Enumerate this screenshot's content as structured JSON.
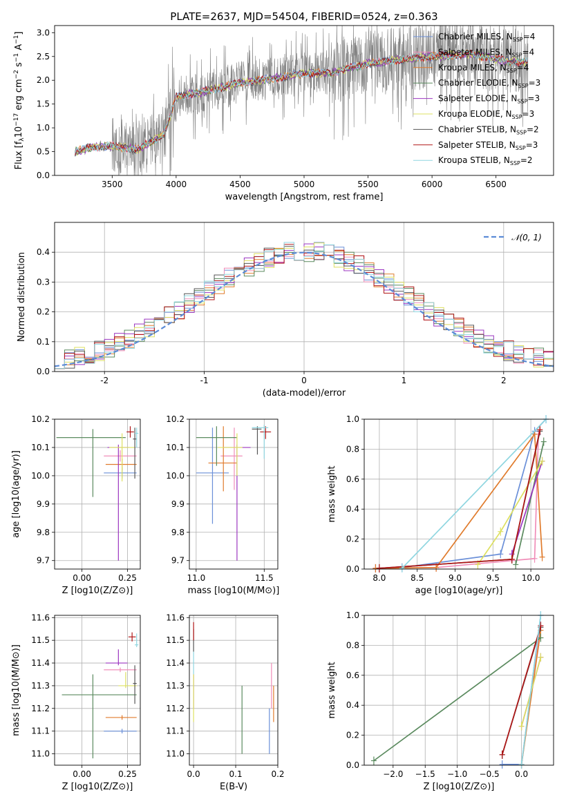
{
  "figure": {
    "title": "PLATE=2637, MJD=54504, FIBERID=0524, z=0.363"
  },
  "series_styles": [
    {
      "name": "Chabrier MILES",
      "nssp": "4",
      "color": "#6a8fd8"
    },
    {
      "name": "Salpeter MILES",
      "nssp": "4",
      "color": "#f08db8"
    },
    {
      "name": "Kroupa MILES",
      "nssp": "4",
      "color": "#e07b2c"
    },
    {
      "name": "Chabrier ELODIE",
      "nssp": "3",
      "color": "#5a8a5e"
    },
    {
      "name": "Salpeter ELODIE",
      "nssp": "3",
      "color": "#9b35c0"
    },
    {
      "name": "Kroupa ELODIE",
      "nssp": "3",
      "color": "#dde060"
    },
    {
      "name": "Chabrier STELIB",
      "nssp": "2",
      "color": "#555555"
    },
    {
      "name": "Salpeter STELIB",
      "nssp": "3",
      "color": "#b01616"
    },
    {
      "name": "Kroupa STELIB",
      "nssp": "2",
      "color": "#8fd6e0"
    }
  ],
  "chart_data": [
    {
      "id": "spectrum",
      "type": "line",
      "title": "PLATE=2637, MJD=54504, FIBERID=0524, z=0.363",
      "xlabel": "wavelength [Angstrom, rest frame]",
      "ylabel": "Flux [f_λ 10^-17 erg cm^-2 s^-1 A^-1]",
      "xlim": [
        3050,
        6950
      ],
      "ylim": [
        0,
        3.15
      ],
      "xticks": [
        3500,
        4000,
        4500,
        5000,
        5500,
        6000,
        6500
      ],
      "yticks": [
        0.0,
        0.5,
        1.0,
        1.5,
        2.0,
        2.5,
        3.0
      ],
      "legend_position": "top-right",
      "data_color": "#808080",
      "model_continuum": {
        "x": [
          3210,
          3350,
          3500,
          3700,
          3900,
          3950,
          4000,
          4200,
          4500,
          4800,
          5000,
          5200,
          5500,
          5800,
          6000,
          6300,
          6600,
          6750
        ],
        "y": [
          0.5,
          0.6,
          0.62,
          0.55,
          0.85,
          1.2,
          1.65,
          1.75,
          1.95,
          2.05,
          2.15,
          2.15,
          2.35,
          2.45,
          2.5,
          2.55,
          2.4,
          2.38
        ]
      },
      "grid": false
    },
    {
      "id": "residuals",
      "type": "histogram",
      "xlabel": "(data-model)/error",
      "ylabel": "Normed distribution",
      "xlim": [
        -2.5,
        2.5
      ],
      "ylim": [
        0,
        0.5
      ],
      "xticks": [
        -2,
        -1,
        0,
        1,
        2
      ],
      "yticks": [
        0.0,
        0.1,
        0.2,
        0.3,
        0.4
      ],
      "legend": "𝒩(0, 1)",
      "legend_position": "top-right",
      "bin_width": 0.1,
      "bin_start": -2.5,
      "grid": true
    },
    {
      "id": "age-vs-z",
      "type": "errorbar",
      "xlabel": "Z [log10(Z/Z⊙)]",
      "ylabel": "age [log10(age/yr)]",
      "xlim": [
        -0.15,
        0.32
      ],
      "ylim": [
        9.67,
        10.2
      ],
      "xticks": [
        "0.00",
        "0.25"
      ],
      "yticks": [
        "9.7",
        "9.8",
        "9.9",
        "10.0",
        "10.1",
        "10.2"
      ],
      "points": [
        {
          "series": 0,
          "x": 0.22,
          "y": 10.01,
          "xerr": [
            0.1,
            0.08
          ],
          "yerr": [
            0.02,
            0.02
          ]
        },
        {
          "series": 1,
          "x": 0.21,
          "y": 10.07,
          "xerr": [
            0.09,
            0.09
          ],
          "yerr": [
            0.02,
            0.02
          ]
        },
        {
          "series": 2,
          "x": 0.22,
          "y": 10.04,
          "xerr": [
            0.09,
            0.08
          ],
          "yerr": [
            0.02,
            0.02
          ]
        },
        {
          "series": 3,
          "x": 0.06,
          "y": 10.135,
          "xerr": [
            0.2,
            0.18
          ],
          "yerr": [
            0.21,
            0.03
          ]
        },
        {
          "series": 4,
          "x": 0.2,
          "y": 10.1,
          "xerr": [
            0.06,
            0.06
          ],
          "yerr": [
            0.4,
            0.01
          ]
        },
        {
          "series": 5,
          "x": 0.22,
          "y": 10.1,
          "xerr": [
            0.07,
            0.07
          ],
          "yerr": [
            0.12,
            0.05
          ]
        },
        {
          "series": 6,
          "x": 0.29,
          "y": 10.13,
          "xerr": [
            0.01,
            0.01
          ],
          "yerr": [
            0.14,
            0.04
          ]
        },
        {
          "series": 7,
          "x": 0.265,
          "y": 10.155,
          "xerr": [
            0.02,
            0.02
          ],
          "yerr": [
            0.02,
            0.02
          ]
        },
        {
          "series": 8,
          "x": 0.3,
          "y": 10.15,
          "xerr": [
            0.01,
            0.01
          ],
          "yerr": [
            0.05,
            0.02
          ]
        }
      ],
      "grid": true
    },
    {
      "id": "age-vs-mass",
      "type": "errorbar",
      "xlabel": "mass [log10(M/M⊙)]",
      "ylabel": "",
      "xlim": [
        10.95,
        11.6
      ],
      "ylim": [
        9.67,
        10.2
      ],
      "xticks": [
        "11.0",
        "11.5"
      ],
      "yticks": [
        "9.7",
        "9.8",
        "9.9",
        "10.0",
        "10.1",
        "10.2"
      ],
      "points": [
        {
          "series": 0,
          "x": 11.12,
          "y": 10.01,
          "xerr": [
            0.12,
            0.12
          ],
          "yerr": [
            0.18,
            0.16
          ]
        },
        {
          "series": 1,
          "x": 11.28,
          "y": 10.07,
          "xerr": [
            0.1,
            0.06
          ],
          "yerr": [
            0.12,
            0.1
          ]
        },
        {
          "series": 2,
          "x": 11.2,
          "y": 10.045,
          "xerr": [
            0.11,
            0.1
          ],
          "yerr": [
            0.1,
            0.13
          ]
        },
        {
          "series": 3,
          "x": 11.15,
          "y": 10.135,
          "xerr": [
            0.15,
            0.15
          ],
          "yerr": [
            0.1,
            0.04
          ]
        },
        {
          "series": 4,
          "x": 11.3,
          "y": 10.1,
          "xerr": [
            0.1,
            0.1
          ],
          "yerr": [
            0.4,
            0.01
          ]
        },
        {
          "series": 5,
          "x": 11.3,
          "y": 10.1,
          "xerr": [
            0.14,
            0.04
          ],
          "yerr": [
            0.1,
            0.05
          ]
        },
        {
          "series": 6,
          "x": 11.45,
          "y": 10.165,
          "xerr": [
            0.04,
            0.03
          ],
          "yerr": [
            0.09,
            0.01
          ]
        },
        {
          "series": 7,
          "x": 11.51,
          "y": 10.155,
          "xerr": [
            0.04,
            0.04
          ],
          "yerr": [
            0.025,
            0.02
          ]
        },
        {
          "series": 8,
          "x": 11.5,
          "y": 10.17,
          "xerr": [
            0.09,
            0.03
          ],
          "yerr": [
            0.11,
            0.01
          ]
        }
      ],
      "grid": true
    },
    {
      "id": "mass-weight-vs-age",
      "type": "line",
      "xlabel": "age [log10(age/yr)]",
      "ylabel": "mass weight",
      "xlim": [
        7.8,
        10.3
      ],
      "ylim": [
        0,
        1.0
      ],
      "xticks": [
        "8.0",
        "8.5",
        "9.0",
        "9.5",
        "10.0"
      ],
      "yticks": [
        "0.0",
        "0.2",
        "0.4",
        "0.6",
        "0.8",
        "1.0"
      ],
      "series": [
        {
          "series": 0,
          "x": [
            7.95,
            8.3,
            9.6,
            10.05,
            10.2
          ],
          "y": [
            0.005,
            0.01,
            0.1,
            0.92,
            1.0
          ]
        },
        {
          "series": 1,
          "x": [
            7.95,
            8.75,
            10.05,
            10.1
          ],
          "y": [
            0.005,
            0.01,
            0.07,
            0.9
          ]
        },
        {
          "series": 2,
          "x": [
            7.95,
            8.75,
            10.05,
            10.15
          ],
          "y": [
            0.005,
            0.01,
            0.9,
            0.08
          ]
        },
        {
          "series": 3,
          "x": [
            9.8,
            10.17
          ],
          "y": [
            0.03,
            0.85
          ]
        },
        {
          "series": 4,
          "x": [
            9.75,
            10.15
          ],
          "y": [
            0.1,
            0.72
          ]
        },
        {
          "series": 5,
          "x": [
            9.3,
            9.6,
            10.15
          ],
          "y": [
            0.03,
            0.25,
            0.72
          ]
        },
        {
          "series": 6,
          "x": [
            8.0,
            9.75,
            10.12
          ],
          "y": [
            0.005,
            0.065,
            0.92
          ]
        },
        {
          "series": 7,
          "x": [
            8.0,
            9.75,
            10.12
          ],
          "y": [
            0.005,
            0.065,
            0.93
          ]
        },
        {
          "series": 8,
          "x": [
            8.3,
            10.2
          ],
          "y": [
            0.005,
            1.0
          ]
        }
      ],
      "grid": true
    },
    {
      "id": "mass-vs-z",
      "type": "errorbar",
      "xlabel": "Z [log10(Z/Z⊙)]",
      "ylabel": "mass [log10(M/M⊙)]",
      "xlim": [
        -0.15,
        0.32
      ],
      "ylim": [
        10.95,
        11.61
      ],
      "xticks": [
        "0.00",
        "0.25"
      ],
      "yticks": [
        "11.0",
        "11.1",
        "11.2",
        "11.3",
        "11.4",
        "11.5",
        "11.6"
      ],
      "points": [
        {
          "series": 0,
          "x": 0.22,
          "y": 11.1,
          "xerr": [
            0.1,
            0.08
          ],
          "yerr": [
            0.01,
            0.01
          ]
        },
        {
          "series": 1,
          "x": 0.21,
          "y": 11.37,
          "xerr": [
            0.09,
            0.09
          ],
          "yerr": [
            0.01,
            0.01
          ]
        },
        {
          "series": 2,
          "x": 0.22,
          "y": 11.16,
          "xerr": [
            0.09,
            0.08
          ],
          "yerr": [
            0.01,
            0.01
          ]
        },
        {
          "series": 3,
          "x": 0.06,
          "y": 11.26,
          "xerr": [
            0.17,
            0.24
          ],
          "yerr": [
            0.28,
            0.09
          ]
        },
        {
          "series": 4,
          "x": 0.2,
          "y": 11.4,
          "xerr": [
            0.07,
            0.05
          ],
          "yerr": [
            0.01,
            0.06
          ]
        },
        {
          "series": 5,
          "x": 0.24,
          "y": 11.3,
          "xerr": [
            0.04,
            0.06
          ],
          "yerr": [
            0.01,
            0.06
          ]
        },
        {
          "series": 6,
          "x": 0.29,
          "y": 11.31,
          "xerr": [
            0.01,
            0.01
          ],
          "yerr": [
            0.09,
            0.08
          ]
        },
        {
          "series": 7,
          "x": 0.275,
          "y": 11.515,
          "xerr": [
            0.02,
            0.02
          ],
          "yerr": [
            0.02,
            0.02
          ]
        },
        {
          "series": 8,
          "x": 0.3,
          "y": 11.48,
          "xerr": [
            0.01,
            0.01
          ],
          "yerr": [
            0.01,
            0.05
          ]
        }
      ],
      "grid": true
    },
    {
      "id": "mass-vs-ebv",
      "type": "errorbar",
      "xlabel": "E(B-V)",
      "ylabel": "",
      "xlim": [
        -0.01,
        0.2
      ],
      "ylim": [
        10.95,
        11.61
      ],
      "xticks": [
        "0.0",
        "0.1",
        "0.2"
      ],
      "yticks": [
        "11.0",
        "11.1",
        "11.2",
        "11.3",
        "11.4",
        "11.5",
        "11.6"
      ],
      "points": [
        {
          "series": 0,
          "x": 0.18,
          "y": 11.2,
          "xerr": [
            0.0,
            0.0
          ],
          "yerr": [
            0.2,
            0.0
          ]
        },
        {
          "series": 1,
          "x": 0.185,
          "y": 11.3,
          "xerr": [
            0.0,
            0.0
          ],
          "yerr": [
            0.1,
            0.1
          ]
        },
        {
          "series": 2,
          "x": 0.19,
          "y": 11.2,
          "xerr": [
            0.0,
            0.0
          ],
          "yerr": [
            0.06,
            0.1
          ]
        },
        {
          "series": 3,
          "x": 0.115,
          "y": 11.1,
          "xerr": [
            0.0,
            0.0
          ],
          "yerr": [
            0.1,
            0.2
          ]
        },
        {
          "series": 4,
          "x": 0.0,
          "y": 11.3,
          "xerr": [
            0.0,
            0.0
          ],
          "yerr": [
            0.1,
            0.05
          ]
        },
        {
          "series": 5,
          "x": 0.0,
          "y": 11.2,
          "xerr": [
            0.0,
            0.0
          ],
          "yerr": [
            0.06,
            0.15
          ]
        },
        {
          "series": 6,
          "x": 0.0,
          "y": 11.5,
          "xerr": [
            0.0,
            0.0
          ],
          "yerr": [
            0.05,
            0.05
          ]
        },
        {
          "series": 7,
          "x": 0.0,
          "y": 11.53,
          "xerr": [
            0.0,
            0.0
          ],
          "yerr": [
            0.03,
            0.05
          ]
        },
        {
          "series": 8,
          "x": 0.0,
          "y": 11.4,
          "xerr": [
            0.0,
            0.0
          ],
          "yerr": [
            0.05,
            0.05
          ]
        }
      ],
      "grid": true
    },
    {
      "id": "mass-weight-vs-z",
      "type": "line",
      "xlabel": "Z [log10(Z/Z⊙)]",
      "ylabel": "mass weight",
      "xlim": [
        -2.45,
        0.5
      ],
      "ylim": [
        0,
        1.0
      ],
      "xticks": [
        "−2.0",
        "−1.5",
        "−1.0",
        "−0.5",
        "0.0"
      ],
      "yticks": [
        "0.0",
        "0.2",
        "0.4",
        "0.6",
        "0.8",
        "1.0"
      ],
      "series": [
        {
          "series": 0,
          "x": [
            -0.3,
            0.0,
            0.3
          ],
          "y": [
            0.005,
            0.005,
            1.0
          ]
        },
        {
          "series": 1,
          "x": [
            0.0,
            0.3
          ],
          "y": [
            0.005,
            0.93
          ]
        },
        {
          "series": 2,
          "x": [
            0.0,
            0.3
          ],
          "y": [
            0.005,
            0.9
          ]
        },
        {
          "series": 3,
          "x": [
            -2.3,
            0.3
          ],
          "y": [
            0.03,
            0.85
          ]
        },
        {
          "series": 4,
          "x": [
            0.0,
            0.3
          ],
          "y": [
            0.26,
            0.72
          ]
        },
        {
          "series": 5,
          "x": [
            0.0,
            0.3
          ],
          "y": [
            0.26,
            0.72
          ]
        },
        {
          "series": 6,
          "x": [
            -0.3,
            0.3
          ],
          "y": [
            0.07,
            0.92
          ]
        },
        {
          "series": 7,
          "x": [
            -0.3,
            0.3
          ],
          "y": [
            0.07,
            0.93
          ]
        },
        {
          "series": 8,
          "x": [
            0.0,
            0.3
          ],
          "y": [
            0.005,
            1.0
          ]
        }
      ],
      "grid": true
    }
  ]
}
